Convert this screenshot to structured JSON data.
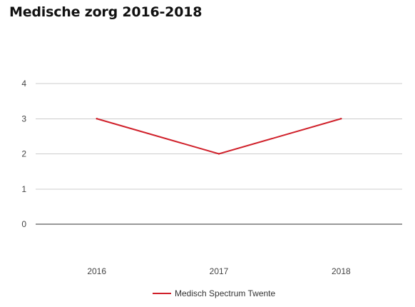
{
  "chart_data": {
    "type": "line",
    "title": "Medische zorg 2016-2018",
    "categories": [
      "2016",
      "2017",
      "2018"
    ],
    "series": [
      {
        "name": "Medisch Spectrum Twente",
        "values": [
          3,
          2,
          3
        ],
        "color": "#d0202a"
      }
    ],
    "ylim": [
      0,
      4
    ],
    "yticks": [
      "0",
      "1",
      "2",
      "3",
      "4"
    ],
    "grid": true,
    "legend_position": "bottom-center",
    "xlabel": "",
    "ylabel": ""
  }
}
